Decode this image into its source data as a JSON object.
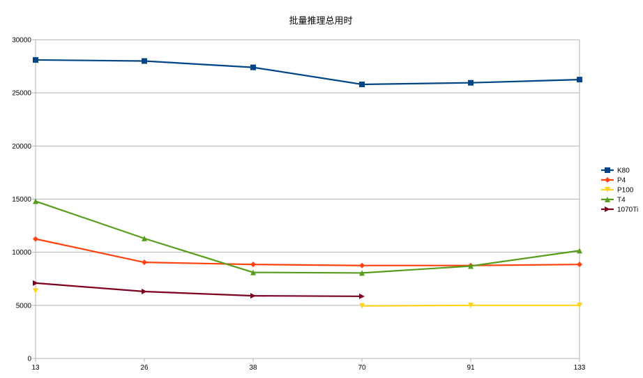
{
  "chart_data": {
    "type": "line",
    "title": "批量推理总用时",
    "xlabel": "",
    "ylabel": "",
    "categories": [
      "13",
      "26",
      "38",
      "70",
      "91",
      "133"
    ],
    "ylim": [
      0,
      30000
    ],
    "yticks": [
      "0",
      "5000",
      "10000",
      "15000",
      "20000",
      "25000",
      "30000"
    ],
    "grid": true,
    "legend_position": "right",
    "series": [
      {
        "name": "K80",
        "color": "#004586",
        "marker": "square",
        "values": [
          28100,
          28000,
          27400,
          25800,
          25950,
          26250
        ]
      },
      {
        "name": "P4",
        "color": "#FF420E",
        "marker": "diamond",
        "values": [
          11250,
          9050,
          8850,
          8750,
          8750,
          8850
        ]
      },
      {
        "name": "P100",
        "color": "#FFD320",
        "marker": "triangle-down",
        "values": [
          6350,
          null,
          null,
          4950,
          5000,
          5000
        ]
      },
      {
        "name": "T4",
        "color": "#579D1C",
        "marker": "triangle-up",
        "values": [
          14800,
          11300,
          8100,
          8050,
          8700,
          10150
        ]
      },
      {
        "name": "1070Ti",
        "color": "#7E0021",
        "marker": "triangle-right",
        "values": [
          7100,
          6300,
          5900,
          5850,
          null,
          null
        ]
      }
    ]
  }
}
